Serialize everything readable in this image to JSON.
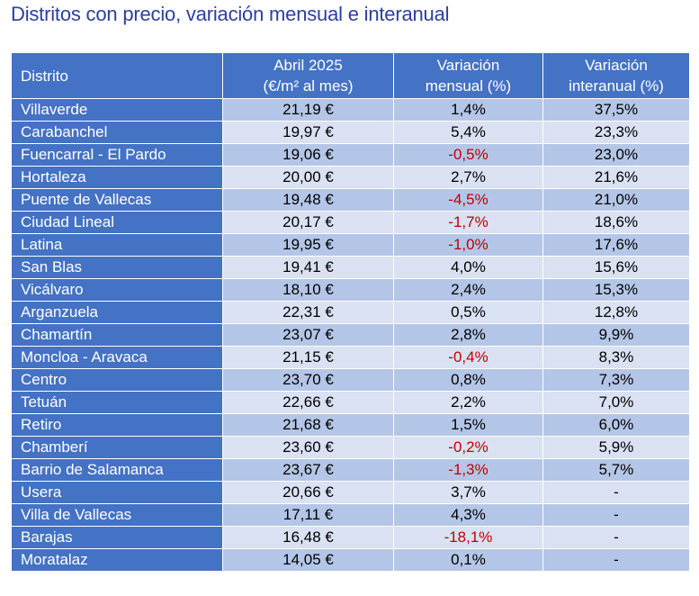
{
  "title": "Distritos con precio, variación mensual e interanual",
  "headers": {
    "district": "Distrito",
    "price_line1": "Abril 2025",
    "price_line2": "(€/m² al mes)",
    "monthly_line1": "Variación",
    "monthly_line2": "mensual (%)",
    "annual_line1": "Variación",
    "annual_line2": "interanual (%)"
  },
  "colors": {
    "header_bg": "#4472c4",
    "row_dark": "#b4c6e7",
    "row_light": "#d9e1f2",
    "negative": "#c00000",
    "title": "#2b3ea0"
  },
  "rows": [
    {
      "district": "Villaverde",
      "price": "21,19 €",
      "monthly": "1,4%",
      "annual": "37,5%"
    },
    {
      "district": "Carabanchel",
      "price": "19,97 €",
      "monthly": "5,4%",
      "annual": "23,3%"
    },
    {
      "district": "Fuencarral - El Pardo",
      "price": "19,06 €",
      "monthly": "-0,5%",
      "annual": "23,0%"
    },
    {
      "district": "Hortaleza",
      "price": "20,00 €",
      "monthly": "2,7%",
      "annual": "21,6%"
    },
    {
      "district": "Puente de Vallecas",
      "price": "19,48 €",
      "monthly": "-4,5%",
      "annual": "21,0%"
    },
    {
      "district": "Ciudad Lineal",
      "price": "20,17 €",
      "monthly": "-1,7%",
      "annual": "18,6%"
    },
    {
      "district": "Latina",
      "price": "19,95 €",
      "monthly": "-1,0%",
      "annual": "17,6%"
    },
    {
      "district": "San Blas",
      "price": "19,41 €",
      "monthly": "4,0%",
      "annual": "15,6%"
    },
    {
      "district": "Vicálvaro",
      "price": "18,10 €",
      "monthly": "2,4%",
      "annual": "15,3%"
    },
    {
      "district": "Arganzuela",
      "price": "22,31 €",
      "monthly": "0,5%",
      "annual": "12,8%"
    },
    {
      "district": "Chamartín",
      "price": "23,07 €",
      "monthly": "2,8%",
      "annual": "9,9%"
    },
    {
      "district": "Moncloa - Aravaca",
      "price": "21,15 €",
      "monthly": "-0,4%",
      "annual": "8,3%"
    },
    {
      "district": "Centro",
      "price": "23,70 €",
      "monthly": "0,8%",
      "annual": "7,3%"
    },
    {
      "district": "Tetuán",
      "price": "22,66 €",
      "monthly": "2,2%",
      "annual": "7,0%"
    },
    {
      "district": "Retiro",
      "price": "21,68 €",
      "monthly": "1,5%",
      "annual": "6,0%"
    },
    {
      "district": "Chamberí",
      "price": "23,60 €",
      "monthly": "-0,2%",
      "annual": "5,9%"
    },
    {
      "district": "Barrio de Salamanca",
      "price": "23,67 €",
      "monthly": "-1,3%",
      "annual": "5,7%"
    },
    {
      "district": "Usera",
      "price": "20,66 €",
      "monthly": "3,7%",
      "annual": "-"
    },
    {
      "district": "Villa de Vallecas",
      "price": "17,11 €",
      "monthly": "4,3%",
      "annual": "-"
    },
    {
      "district": "Barajas",
      "price": "16,48 €",
      "monthly": "-18,1%",
      "annual": "-"
    },
    {
      "district": "Moratalaz",
      "price": "14,05 €",
      "monthly": "0,1%",
      "annual": "-"
    }
  ]
}
